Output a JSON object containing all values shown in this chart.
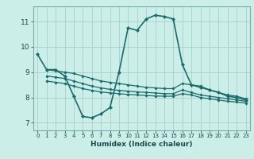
{
  "title": "",
  "xlabel": "Humidex (Indice chaleur)",
  "bg_color": "#cceee8",
  "grid_color": "#aad4ce",
  "line_color": "#1a6b6b",
  "xlim": [
    -0.5,
    23.5
  ],
  "ylim": [
    6.7,
    11.6
  ],
  "xticks": [
    0,
    1,
    2,
    3,
    4,
    5,
    6,
    7,
    8,
    9,
    10,
    11,
    12,
    13,
    14,
    15,
    16,
    17,
    18,
    19,
    20,
    21,
    22,
    23
  ],
  "yticks": [
    7,
    8,
    9,
    10,
    11
  ],
  "series": [
    {
      "x": [
        0,
        1,
        2,
        3,
        4,
        5,
        6,
        7,
        8,
        9,
        10,
        11,
        12,
        13,
        14,
        15,
        16,
        17,
        18,
        19,
        20,
        21,
        22,
        23
      ],
      "y": [
        9.7,
        9.1,
        9.1,
        8.85,
        8.05,
        7.25,
        7.2,
        7.35,
        7.6,
        9.0,
        10.75,
        10.65,
        11.1,
        11.25,
        11.2,
        11.1,
        9.3,
        8.5,
        8.4,
        8.3,
        8.2,
        8.05,
        8.0,
        7.9
      ],
      "marker": "D",
      "markersize": 2.2,
      "linewidth": 1.2
    },
    {
      "x": [
        1,
        2,
        3,
        4,
        5,
        6,
        7,
        8,
        9,
        10,
        11,
        12,
        13,
        14,
        15,
        16,
        17,
        18,
        19,
        20,
        21,
        22,
        23
      ],
      "y": [
        9.1,
        9.05,
        9.0,
        8.95,
        8.85,
        8.75,
        8.65,
        8.6,
        8.55,
        8.5,
        8.45,
        8.4,
        8.38,
        8.35,
        8.35,
        8.55,
        8.5,
        8.45,
        8.3,
        8.2,
        8.1,
        8.05,
        7.95
      ],
      "marker": "D",
      "markersize": 1.8,
      "linewidth": 0.9
    },
    {
      "x": [
        1,
        2,
        3,
        4,
        5,
        6,
        7,
        8,
        9,
        10,
        11,
        12,
        13,
        14,
        15,
        16,
        17,
        18,
        19,
        20,
        21,
        22,
        23
      ],
      "y": [
        8.85,
        8.8,
        8.75,
        8.65,
        8.55,
        8.45,
        8.38,
        8.32,
        8.28,
        8.25,
        8.22,
        8.2,
        8.18,
        8.15,
        8.15,
        8.3,
        8.2,
        8.1,
        8.05,
        8.0,
        7.95,
        7.9,
        7.85
      ],
      "marker": "D",
      "markersize": 1.8,
      "linewidth": 0.9
    },
    {
      "x": [
        1,
        2,
        3,
        4,
        5,
        6,
        7,
        8,
        9,
        10,
        11,
        12,
        13,
        14,
        15,
        16,
        17,
        18,
        19,
        20,
        21,
        22,
        23
      ],
      "y": [
        8.65,
        8.6,
        8.55,
        8.45,
        8.35,
        8.28,
        8.22,
        8.18,
        8.15,
        8.12,
        8.1,
        8.08,
        8.06,
        8.05,
        8.05,
        8.15,
        8.1,
        8.0,
        7.95,
        7.9,
        7.85,
        7.82,
        7.78
      ],
      "marker": "D",
      "markersize": 1.8,
      "linewidth": 0.9
    }
  ]
}
